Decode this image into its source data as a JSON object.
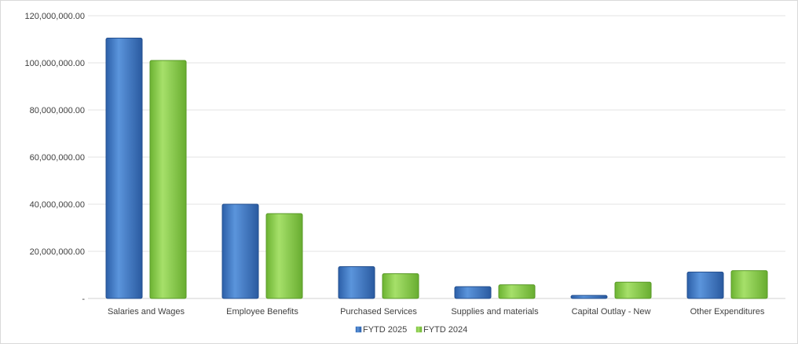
{
  "chart_data": {
    "type": "bar",
    "categories": [
      "Salaries and Wages",
      "Employee Benefits",
      "Purchased Services",
      "Supplies and materials",
      "Capital Outlay - New",
      "Other Expenditures"
    ],
    "series": [
      {
        "name": "FYTD 2025",
        "color": "#3a78c8",
        "values": [
          110500000,
          40000000,
          13500000,
          5000000,
          1300000,
          11200000
        ]
      },
      {
        "name": "FYTD 2024",
        "color": "#8fd14f",
        "values": [
          101000000,
          36000000,
          10500000,
          5800000,
          6900000,
          11800000
        ]
      }
    ],
    "y_ticks": [
      {
        "value": 0,
        "label": "-"
      },
      {
        "value": 20000000,
        "label": "20,000,000.00"
      },
      {
        "value": 40000000,
        "label": "40,000,000.00"
      },
      {
        "value": 60000000,
        "label": "60,000,000.00"
      },
      {
        "value": 80000000,
        "label": "80,000,000.00"
      },
      {
        "value": 100000000,
        "label": "100,000,000.00"
      },
      {
        "value": 120000000,
        "label": "120,000,000.00"
      }
    ],
    "ylim": [
      0,
      120000000
    ],
    "grid": true,
    "legend_position": "bottom-center"
  }
}
